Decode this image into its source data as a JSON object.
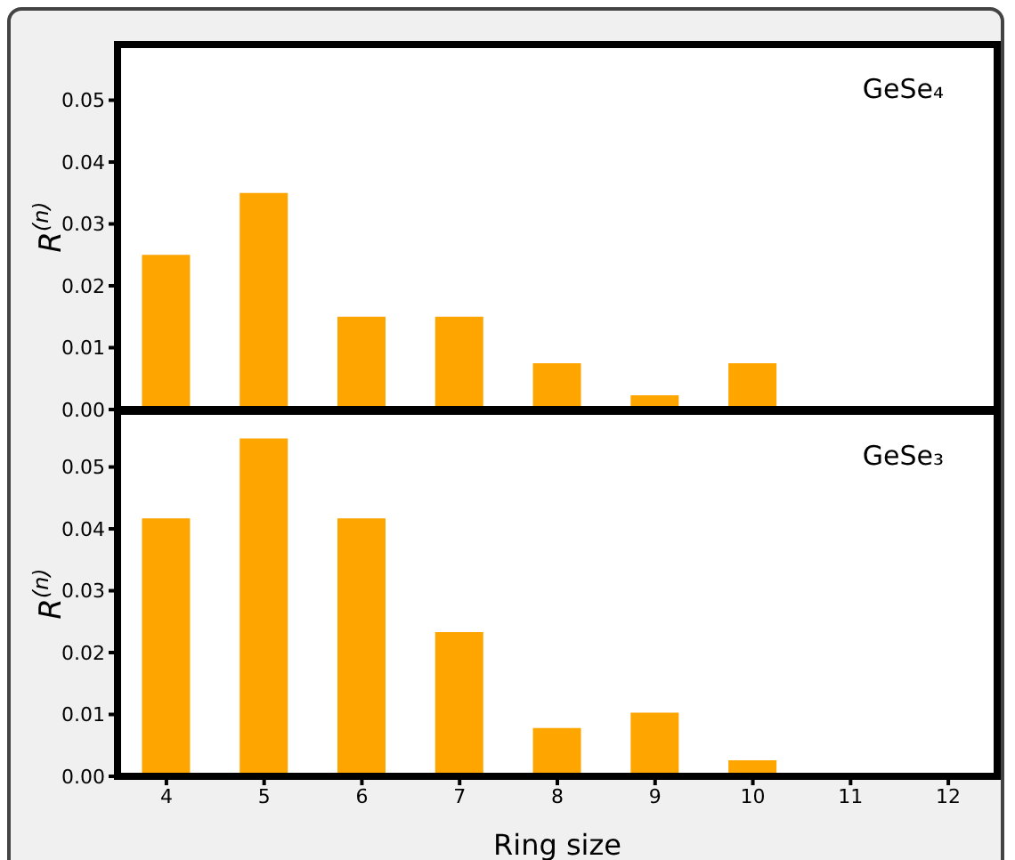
{
  "chart_data": [
    {
      "type": "bar",
      "ylabel": "R$^{(n)}$",
      "annotations": [
        "GeSe₄"
      ],
      "categories": [
        "4",
        "5",
        "6",
        "7",
        "8",
        "9",
        "10",
        "11",
        "12"
      ],
      "series": [
        {
          "color": "#ffa500",
          "values": [
            0.025,
            0.035,
            0.015,
            0.015,
            0.0075,
            0.0023,
            0.0075,
            0,
            0
          ]
        }
      ],
      "ylim": [
        0,
        0.059
      ],
      "yticks": [
        {
          "value": 0,
          "label": "0.00"
        },
        {
          "value": 0.01,
          "label": "0.01"
        },
        {
          "value": 0.02,
          "label": "0.02"
        },
        {
          "value": 0.03,
          "label": "0.03"
        },
        {
          "value": 0.04,
          "label": "0.04"
        },
        {
          "value": 0.05,
          "label": "0.05"
        }
      ],
      "tick_labels": "y"
    },
    {
      "type": "bar",
      "xlabel": "Ring size",
      "ylabel": "R$^{(n)}$",
      "annotations": [
        "GeSe₃"
      ],
      "categories": [
        "4",
        "5",
        "6",
        "7",
        "8",
        "9",
        "10",
        "11",
        "12"
      ],
      "series": [
        {
          "color": "#ffa500",
          "values": [
            0.0417,
            0.0546,
            0.0417,
            0.0233,
            0.0078,
            0.0103,
            0.0026,
            0,
            0
          ]
        }
      ],
      "ylim": [
        0,
        0.059
      ],
      "yticks": [
        {
          "value": 0,
          "label": "0.00"
        },
        {
          "value": 0.01,
          "label": "0.01"
        },
        {
          "value": 0.02,
          "label": "0.02"
        },
        {
          "value": 0.03,
          "label": "0.03"
        },
        {
          "value": 0.04,
          "label": "0.04"
        },
        {
          "value": 0.05,
          "label": "0.05"
        }
      ]
    }
  ]
}
